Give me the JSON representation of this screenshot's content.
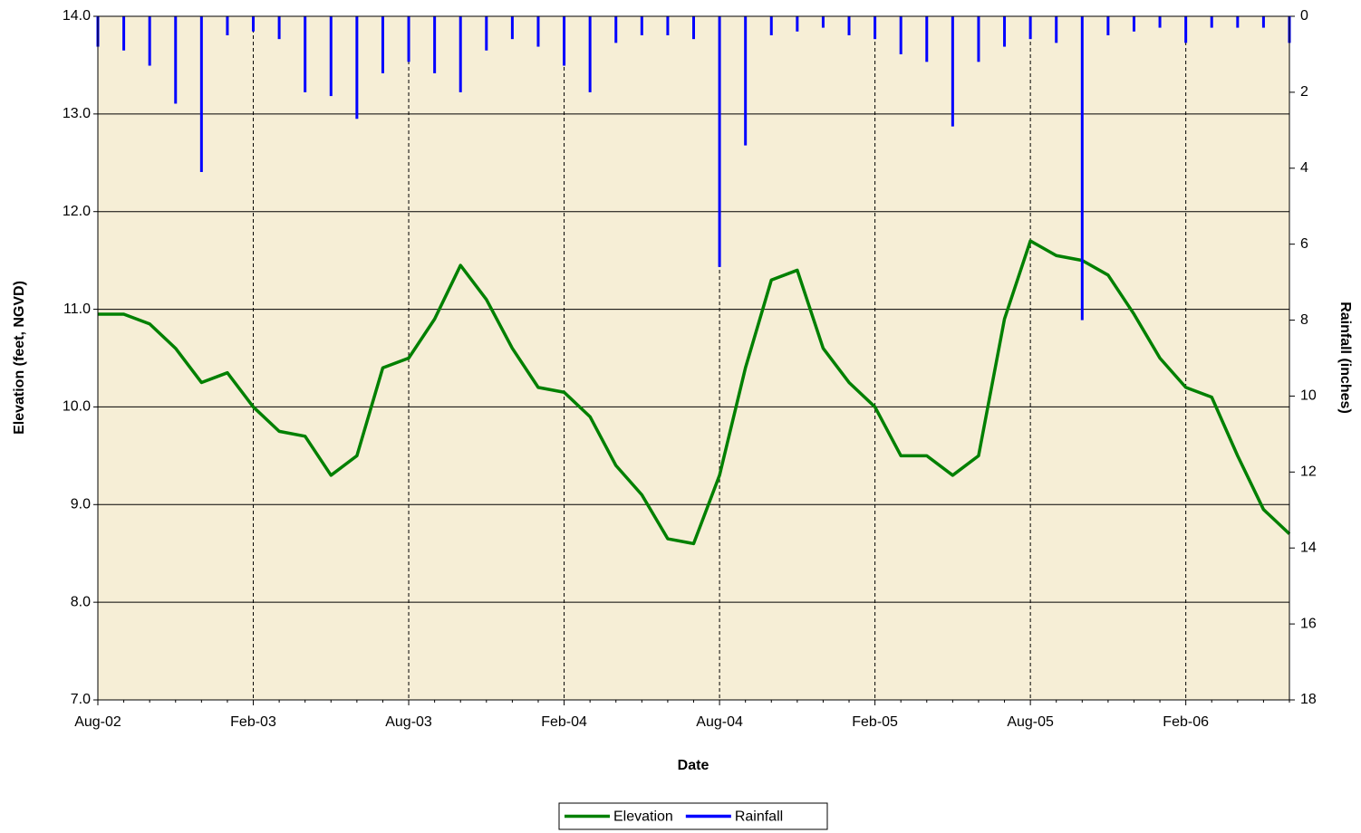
{
  "chart_data": {
    "type": "line",
    "x_label": "Date",
    "y_label": "Elevation (feet, NGVD)",
    "y2_label": "Rainfall (inches)",
    "categories": [
      "Aug-02",
      null,
      null,
      null,
      null,
      null,
      "Feb-03",
      null,
      null,
      null,
      null,
      null,
      "Aug-03",
      null,
      null,
      null,
      null,
      null,
      "Feb-04",
      null,
      null,
      null,
      null,
      null,
      "Aug-04",
      null,
      null,
      null,
      null,
      null,
      "Feb-05",
      null,
      null,
      null,
      null,
      null,
      "Aug-05",
      null,
      null,
      null,
      null,
      null,
      "Feb-06",
      null,
      null,
      null,
      null
    ],
    "series": [
      {
        "name": "Elevation",
        "color": "#008000",
        "type": "line",
        "values": [
          10.95,
          10.95,
          10.85,
          10.6,
          10.25,
          10.35,
          10.0,
          9.75,
          9.7,
          9.3,
          9.5,
          10.4,
          10.5,
          10.9,
          11.45,
          11.1,
          10.6,
          10.2,
          10.15,
          9.9,
          9.4,
          9.1,
          8.65,
          8.6,
          9.3,
          10.4,
          11.3,
          11.4,
          10.6,
          10.25,
          10.0,
          9.5,
          9.5,
          9.3,
          9.5,
          10.9,
          11.7,
          11.55,
          11.5,
          11.35,
          10.95,
          10.5,
          10.2,
          10.1,
          9.5,
          8.95,
          8.7
        ]
      },
      {
        "name": "Rainfall",
        "color": "#0000ff",
        "type": "bar",
        "axis": "y2",
        "values": [
          0.8,
          0.9,
          1.3,
          2.3,
          4.1,
          0.5,
          0.4,
          0.6,
          2.0,
          2.1,
          2.7,
          1.5,
          1.2,
          1.5,
          2.0,
          0.9,
          0.6,
          0.8,
          1.3,
          2.0,
          0.7,
          0.5,
          0.5,
          0.6,
          6.6,
          3.4,
          0.5,
          0.4,
          0.3,
          0.5,
          0.6,
          1.0,
          1.2,
          2.9,
          1.2,
          0.8,
          0.6,
          0.7,
          8.0,
          0.5,
          0.4,
          0.3,
          0.7,
          0.3,
          0.3,
          0.3,
          0.7
        ]
      }
    ],
    "ylim": [
      7,
      14
    ],
    "yticks": [
      {
        "value": 7,
        "label": "7.0"
      },
      {
        "value": 8,
        "label": "8.0"
      },
      {
        "value": 9,
        "label": "9.0"
      },
      {
        "value": 10,
        "label": "10.0"
      },
      {
        "value": 11,
        "label": "11.0"
      },
      {
        "value": 12,
        "label": "12.0"
      },
      {
        "value": 13,
        "label": "13.0"
      },
      {
        "value": 14,
        "label": "14.0"
      }
    ],
    "y2lim": [
      0,
      18
    ],
    "y2ticks": [
      0,
      2,
      4,
      6,
      8,
      10,
      12,
      14,
      16,
      18
    ],
    "y2_inverted": true,
    "grid": true,
    "background": "#f6eed6",
    "legend": "bottom"
  }
}
